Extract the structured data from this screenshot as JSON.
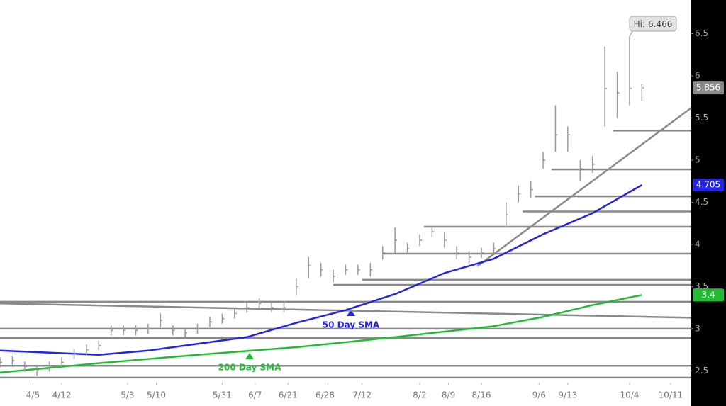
{
  "chart_data": {
    "type": "ohlc",
    "bar_color": "#9a9a9a",
    "xlim": [
      0,
      168
    ],
    "ylim": [
      2.36,
      6.9
    ],
    "xticks": [
      {
        "value": 8,
        "label": "4/5"
      },
      {
        "value": 15,
        "label": "4/12"
      },
      {
        "value": 31,
        "label": "5/3"
      },
      {
        "value": 38,
        "label": "5/10"
      },
      {
        "value": 54,
        "label": "5/31"
      },
      {
        "value": 62,
        "label": "6/7"
      },
      {
        "value": 70,
        "label": "6/21"
      },
      {
        "value": 79,
        "label": "6/28"
      },
      {
        "value": 88,
        "label": "7/12"
      },
      {
        "value": 102,
        "label": "8/2"
      },
      {
        "value": 109,
        "label": "8/9"
      },
      {
        "value": 117,
        "label": "8/16"
      },
      {
        "value": 131,
        "label": "9/6"
      },
      {
        "value": 138,
        "label": "9/13"
      },
      {
        "value": 153,
        "label": "10/4"
      },
      {
        "value": 163,
        "label": "10/11"
      }
    ],
    "yticks": [
      2.5,
      3,
      3.5,
      4,
      4.5,
      5,
      5.5,
      6,
      6.5
    ],
    "x": [
      0,
      3,
      6,
      9,
      12,
      15,
      18,
      21,
      24,
      27,
      30,
      33,
      36,
      39,
      42,
      45,
      48,
      51,
      54,
      57,
      60,
      63,
      66,
      69,
      72,
      75,
      78,
      81,
      84,
      87,
      90,
      93,
      96,
      99,
      102,
      105,
      108,
      111,
      114,
      117,
      120,
      123,
      126,
      129,
      132,
      135,
      138,
      141,
      144,
      147,
      150,
      153,
      156
    ],
    "high": [
      2.66,
      2.68,
      2.61,
      2.56,
      2.61,
      2.66,
      2.76,
      2.81,
      2.86,
      3.04,
      3.04,
      3.04,
      3.06,
      3.18,
      3.04,
      3.01,
      3.06,
      3.14,
      3.18,
      3.24,
      3.31,
      3.36,
      3.31,
      3.31,
      3.6,
      3.85,
      3.78,
      3.7,
      3.76,
      3.76,
      3.78,
      3.98,
      4.2,
      4.02,
      4.12,
      4.22,
      4.14,
      3.98,
      3.92,
      3.96,
      4.02,
      4.5,
      4.7,
      4.75,
      5.1,
      5.65,
      5.4,
      5.0,
      5.05,
      6.35,
      6.05,
      6.466,
      5.9
    ],
    "low": [
      2.54,
      2.56,
      2.49,
      2.44,
      2.49,
      2.54,
      2.64,
      2.69,
      2.74,
      2.92,
      2.92,
      2.92,
      2.94,
      3.02,
      2.92,
      2.89,
      2.94,
      3.02,
      3.06,
      3.12,
      3.19,
      3.24,
      3.19,
      3.19,
      3.4,
      3.6,
      3.62,
      3.55,
      3.64,
      3.64,
      3.62,
      3.82,
      3.9,
      3.88,
      3.98,
      4.08,
      3.96,
      3.82,
      3.78,
      3.84,
      3.88,
      4.2,
      4.5,
      4.55,
      4.9,
      5.1,
      5.1,
      4.75,
      4.85,
      5.4,
      5.5,
      5.65,
      5.7
    ],
    "close": [
      2.6,
      2.62,
      2.55,
      2.5,
      2.55,
      2.6,
      2.7,
      2.75,
      2.8,
      2.98,
      2.98,
      2.98,
      3.0,
      3.1,
      2.98,
      2.95,
      3.0,
      3.08,
      3.12,
      3.18,
      3.25,
      3.3,
      3.25,
      3.25,
      3.5,
      3.75,
      3.7,
      3.62,
      3.7,
      3.7,
      3.7,
      3.9,
      4.05,
      3.95,
      4.05,
      4.15,
      4.05,
      3.9,
      3.85,
      3.9,
      3.95,
      4.35,
      4.6,
      4.65,
      5.0,
      5.3,
      5.3,
      4.9,
      4.95,
      5.85,
      5.8,
      5.85,
      5.856
    ],
    "high_callout": {
      "label": "Hi:",
      "index": 51
    },
    "sma": [
      {
        "name": "50 Day SMA",
        "color": "#2424e6",
        "x": [
          0,
          24,
          36,
          48,
          60,
          72,
          84,
          96,
          108,
          120,
          132,
          144,
          156
        ],
        "values": [
          2.74,
          2.69,
          2.74,
          2.82,
          2.9,
          3.07,
          3.22,
          3.41,
          3.66,
          3.83,
          4.12,
          4.37,
          4.705
        ]
      },
      {
        "name": "200 Day SMA",
        "color": "#22bb33",
        "x": [
          0,
          24,
          48,
          72,
          96,
          120,
          132,
          144,
          156
        ],
        "values": [
          2.48,
          2.59,
          2.69,
          2.78,
          2.9,
          3.03,
          3.14,
          3.28,
          3.4
        ]
      }
    ],
    "levels": [
      {
        "value": 2.56,
        "start": 0
      },
      {
        "value": 2.42,
        "start": 0
      },
      {
        "value": 2.89,
        "start": 0
      },
      {
        "value": 3.0,
        "start": 0
      },
      {
        "value": 3.32,
        "start": 0
      },
      {
        "value": 3.52,
        "start": 81
      },
      {
        "value": 3.58,
        "start": 88
      },
      {
        "value": 3.89,
        "start": 93
      },
      {
        "value": 4.21,
        "start": 103
      },
      {
        "value": 4.39,
        "start": 127
      },
      {
        "value": 4.57,
        "start": 130
      },
      {
        "value": 4.89,
        "start": 134
      },
      {
        "value": 5.35,
        "start": 149
      }
    ],
    "trendlines": [
      {
        "x": [
          0,
          168
        ],
        "y": [
          3.3,
          3.13
        ]
      },
      {
        "x": [
          116,
          168
        ],
        "y": [
          3.74,
          5.62
        ]
      }
    ]
  }
}
